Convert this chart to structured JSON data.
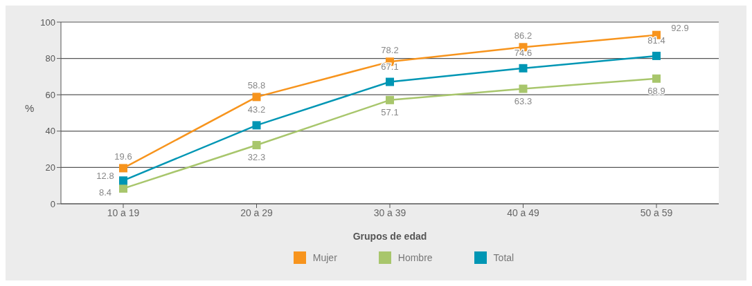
{
  "chart_data": {
    "type": "line",
    "xlabel": "Grupos de edad",
    "ylabel": "%",
    "categories": [
      "10 a 19",
      "20 a 29",
      "30 a 39",
      "40 a 49",
      "50 a 59"
    ],
    "series": [
      {
        "name": "Mujer",
        "color": "#f7941d",
        "values": [
          19.6,
          58.8,
          78.2,
          86.2,
          92.9
        ]
      },
      {
        "name": "Hombre",
        "color": "#a8c66c",
        "values": [
          8.4,
          32.3,
          57.1,
          63.3,
          68.9
        ]
      },
      {
        "name": "Total",
        "color": "#0096b4",
        "values": [
          12.8,
          43.2,
          67.1,
          74.6,
          81.4
        ]
      }
    ],
    "ylim": [
      0,
      100
    ],
    "yticks": [
      0,
      20,
      40,
      60,
      80,
      100
    ],
    "grid": "y",
    "legend": "bottom",
    "marker": "square",
    "line_style": "solid",
    "data_labels": true
  }
}
